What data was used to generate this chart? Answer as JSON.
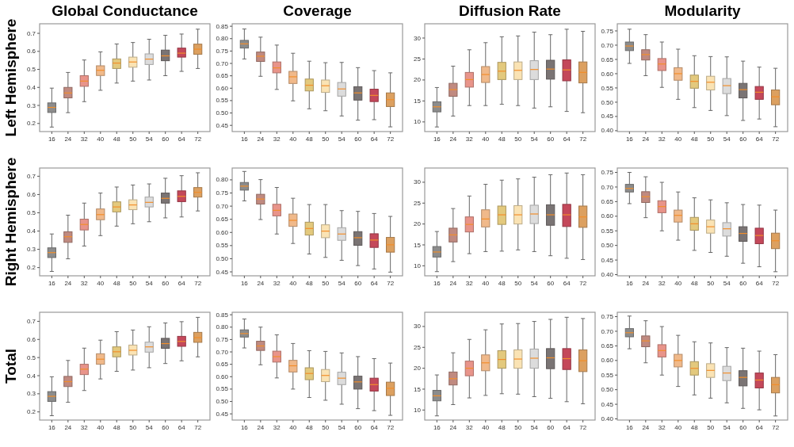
{
  "chart_data": [
    {
      "type": "box",
      "title": "Global Conductance",
      "ylabel": "Left Hemisphere",
      "categories": [
        "16",
        "24",
        "32",
        "40",
        "48",
        "50",
        "54",
        "60",
        "64",
        "72"
      ],
      "colors": [
        "#8c8c8c",
        "#c08a80",
        "#e8948a",
        "#f0b98a",
        "#e3c97d",
        "#fae3b4",
        "#dcdcdc",
        "#7a7474",
        "#c4485a",
        "#dca060"
      ],
      "ylim": [
        0.155,
        0.753
      ],
      "yticks": [
        0.2,
        0.3,
        0.4,
        0.5,
        0.6,
        0.7
      ],
      "boxes": [
        {
          "low": 0.18,
          "q1": 0.261,
          "median": 0.289,
          "q3": 0.314,
          "high": 0.396
        },
        {
          "low": 0.26,
          "q1": 0.342,
          "median": 0.369,
          "q3": 0.4,
          "high": 0.483
        },
        {
          "low": 0.321,
          "q1": 0.406,
          "median": 0.435,
          "q3": 0.465,
          "high": 0.552
        },
        {
          "low": 0.384,
          "q1": 0.466,
          "median": 0.495,
          "q3": 0.52,
          "high": 0.597
        },
        {
          "low": 0.424,
          "q1": 0.505,
          "median": 0.535,
          "q3": 0.558,
          "high": 0.641
        },
        {
          "low": 0.435,
          "q1": 0.512,
          "median": 0.541,
          "q3": 0.568,
          "high": 0.649
        },
        {
          "low": 0.441,
          "q1": 0.527,
          "median": 0.557,
          "q3": 0.586,
          "high": 0.667
        },
        {
          "low": 0.465,
          "q1": 0.548,
          "median": 0.575,
          "q3": 0.607,
          "high": 0.689
        },
        {
          "low": 0.489,
          "q1": 0.568,
          "median": 0.59,
          "q3": 0.618,
          "high": 0.696
        },
        {
          "low": 0.505,
          "q1": 0.584,
          "median": 0.612,
          "q3": 0.64,
          "high": 0.723
        }
      ]
    },
    {
      "type": "box",
      "title": "Coverage",
      "categories": [
        "16",
        "24",
        "32",
        "40",
        "48",
        "50",
        "54",
        "60",
        "64",
        "72"
      ],
      "colors": [
        "#8c8c8c",
        "#c08a80",
        "#e8948a",
        "#f0b98a",
        "#e3c97d",
        "#fae3b4",
        "#dcdcdc",
        "#7a7474",
        "#c4485a",
        "#dca060"
      ],
      "ylim": [
        0.425,
        0.86
      ],
      "yticks": [
        0.45,
        {
          "value": 0.5,
          "label": "0.50"
        },
        0.55,
        {
          "value": 0.6,
          "label": "0.60"
        },
        0.65,
        {
          "value": 0.7,
          "label": "0.70"
        },
        0.75,
        {
          "value": 0.8,
          "label": "0.80"
        },
        0.85
      ],
      "boxes": [
        {
          "low": 0.718,
          "q1": 0.762,
          "median": 0.779,
          "q3": 0.793,
          "high": 0.839
        },
        {
          "low": 0.648,
          "q1": 0.708,
          "median": 0.729,
          "q3": 0.746,
          "high": 0.806
        },
        {
          "low": 0.595,
          "q1": 0.662,
          "median": 0.682,
          "q3": 0.706,
          "high": 0.774
        },
        {
          "low": 0.549,
          "q1": 0.619,
          "median": 0.646,
          "q3": 0.668,
          "high": 0.741
        },
        {
          "low": 0.517,
          "q1": 0.589,
          "median": 0.612,
          "q3": 0.637,
          "high": 0.709
        },
        {
          "low": 0.509,
          "q1": 0.583,
          "median": 0.61,
          "q3": 0.633,
          "high": 0.703
        },
        {
          "low": 0.488,
          "q1": 0.568,
          "median": 0.597,
          "q3": 0.623,
          "high": 0.704
        },
        {
          "low": 0.471,
          "q1": 0.552,
          "median": 0.581,
          "q3": 0.606,
          "high": 0.683
        },
        {
          "low": 0.473,
          "q1": 0.546,
          "median": 0.571,
          "q3": 0.596,
          "high": 0.671
        },
        {
          "low": 0.444,
          "q1": 0.526,
          "median": 0.554,
          "q3": 0.581,
          "high": 0.662
        }
      ]
    },
    {
      "type": "box",
      "title": "Diffusion Rate",
      "categories": [
        "16",
        "24",
        "32",
        "40",
        "48",
        "50",
        "54",
        "60",
        "64",
        "72"
      ],
      "colors": [
        "#8c8c8c",
        "#c08a80",
        "#e8948a",
        "#f0b98a",
        "#e3c97d",
        "#fae3b4",
        "#dcdcdc",
        "#7a7474",
        "#c4485a",
        "#dca060"
      ],
      "ylim": [
        7.7,
        33.4
      ],
      "yticks": [
        10,
        15,
        20,
        25,
        30
      ],
      "boxes": [
        {
          "low": 8.8,
          "q1": 12.4,
          "median": 13.6,
          "q3": 14.8,
          "high": 18.2
        },
        {
          "low": 11.4,
          "q1": 16.1,
          "median": 17.7,
          "q3": 19.2,
          "high": 23.3
        },
        {
          "low": 13.9,
          "q1": 18.3,
          "median": 20.1,
          "q3": 21.8,
          "high": 27.2
        },
        {
          "low": 13.9,
          "q1": 19.4,
          "median": 21.3,
          "q3": 23.2,
          "high": 28.9
        },
        {
          "low": 14.2,
          "q1": 20.1,
          "median": 22.1,
          "q3": 24.2,
          "high": 30.3
        },
        {
          "low": 13.9,
          "q1": 20.1,
          "median": 22.3,
          "q3": 24.3,
          "high": 30.5
        },
        {
          "low": 13.3,
          "q1": 20.1,
          "median": 22.5,
          "q3": 24.6,
          "high": 31.4
        },
        {
          "low": 13.6,
          "q1": 20.2,
          "median": 22.6,
          "q3": 24.7,
          "high": 30.8
        },
        {
          "low": 12.5,
          "q1": 19.8,
          "median": 22.4,
          "q3": 24.8,
          "high": 32.1
        },
        {
          "low": 12.2,
          "q1": 19.3,
          "median": 21.8,
          "q3": 24.3,
          "high": 31.6
        }
      ]
    },
    {
      "type": "box",
      "title": "Modularity",
      "categories": [
        "16",
        "24",
        "32",
        "40",
        "48",
        "50",
        "54",
        "60",
        "64",
        "72"
      ],
      "colors": [
        "#8c8c8c",
        "#c08a80",
        "#e8948a",
        "#f0b98a",
        "#e3c97d",
        "#fae3b4",
        "#dcdcdc",
        "#7a7474",
        "#c4485a",
        "#dca060"
      ],
      "ylim": [
        0.397,
        0.775
      ],
      "yticks": [
        {
          "value": 0.4,
          "label": "0.40"
        },
        0.45,
        {
          "value": 0.5,
          "label": "0.50"
        },
        0.55,
        {
          "value": 0.6,
          "label": "0.60"
        },
        0.65,
        {
          "value": 0.7,
          "label": "0.70"
        },
        0.75
      ],
      "boxes": [
        {
          "low": 0.636,
          "q1": 0.681,
          "median": 0.697,
          "q3": 0.711,
          "high": 0.756
        },
        {
          "low": 0.593,
          "q1": 0.648,
          "median": 0.667,
          "q3": 0.684,
          "high": 0.737
        },
        {
          "low": 0.552,
          "q1": 0.611,
          "median": 0.634,
          "q3": 0.653,
          "high": 0.711
        },
        {
          "low": 0.51,
          "q1": 0.577,
          "median": 0.6,
          "q3": 0.621,
          "high": 0.686
        },
        {
          "low": 0.481,
          "q1": 0.549,
          "median": 0.573,
          "q3": 0.595,
          "high": 0.663
        },
        {
          "low": 0.471,
          "q1": 0.543,
          "median": 0.57,
          "q3": 0.591,
          "high": 0.66
        },
        {
          "low": 0.453,
          "q1": 0.53,
          "median": 0.558,
          "q3": 0.583,
          "high": 0.659
        },
        {
          "low": 0.436,
          "q1": 0.515,
          "median": 0.544,
          "q3": 0.566,
          "high": 0.644
        },
        {
          "low": 0.441,
          "q1": 0.51,
          "median": 0.535,
          "q3": 0.555,
          "high": 0.623
        },
        {
          "low": 0.414,
          "q1": 0.491,
          "median": 0.519,
          "q3": 0.543,
          "high": 0.619
        }
      ]
    },
    {
      "type": "box",
      "ylabel": "Right Hemisphere",
      "categories": [
        "16",
        "24",
        "32",
        "40",
        "48",
        "50",
        "54",
        "60",
        "64",
        "72"
      ],
      "colors": [
        "#8c8c8c",
        "#c08a80",
        "#e8948a",
        "#f0b98a",
        "#e3c97d",
        "#fae3b4",
        "#dcdcdc",
        "#7a7474",
        "#c4485a",
        "#dca060"
      ],
      "ylim": [
        0.155,
        0.745
      ],
      "yticks": [
        0.2,
        0.3,
        0.4,
        0.5,
        0.6,
        0.7
      ],
      "boxes": [
        {
          "low": 0.179,
          "q1": 0.255,
          "median": 0.282,
          "q3": 0.308,
          "high": 0.384
        },
        {
          "low": 0.248,
          "q1": 0.338,
          "median": 0.369,
          "q3": 0.396,
          "high": 0.487
        },
        {
          "low": 0.318,
          "q1": 0.406,
          "median": 0.436,
          "q3": 0.465,
          "high": 0.553
        },
        {
          "low": 0.375,
          "q1": 0.462,
          "median": 0.49,
          "q3": 0.521,
          "high": 0.608
        },
        {
          "low": 0.427,
          "q1": 0.505,
          "median": 0.532,
          "q3": 0.56,
          "high": 0.641
        },
        {
          "low": 0.44,
          "q1": 0.517,
          "median": 0.543,
          "q3": 0.571,
          "high": 0.652
        },
        {
          "low": 0.451,
          "q1": 0.532,
          "median": 0.557,
          "q3": 0.586,
          "high": 0.658
        },
        {
          "low": 0.472,
          "q1": 0.553,
          "median": 0.579,
          "q3": 0.608,
          "high": 0.689
        },
        {
          "low": 0.477,
          "q1": 0.561,
          "median": 0.59,
          "q3": 0.62,
          "high": 0.703
        },
        {
          "low": 0.51,
          "q1": 0.586,
          "median": 0.612,
          "q3": 0.638,
          "high": 0.719
        }
      ]
    },
    {
      "type": "box",
      "categories": [
        "16",
        "24",
        "32",
        "40",
        "48",
        "50",
        "54",
        "60",
        "64",
        "72"
      ],
      "colors": [
        "#8c8c8c",
        "#c08a80",
        "#e8948a",
        "#f0b98a",
        "#e3c97d",
        "#fae3b4",
        "#dcdcdc",
        "#7a7474",
        "#c4485a",
        "#dca060"
      ],
      "ylim": [
        0.435,
        0.845
      ],
      "yticks": [
        0.45,
        {
          "value": 0.5,
          "label": "0.50"
        },
        0.55,
        {
          "value": 0.6,
          "label": "0.60"
        },
        0.65,
        {
          "value": 0.7,
          "label": "0.70"
        },
        0.75,
        {
          "value": 0.8,
          "label": "0.80"
        }
      ],
      "boxes": [
        {
          "low": 0.72,
          "q1": 0.761,
          "median": 0.776,
          "q3": 0.79,
          "high": 0.832
        },
        {
          "low": 0.649,
          "q1": 0.708,
          "median": 0.727,
          "q3": 0.745,
          "high": 0.801
        },
        {
          "low": 0.594,
          "q1": 0.663,
          "median": 0.684,
          "q3": 0.707,
          "high": 0.771
        },
        {
          "low": 0.558,
          "q1": 0.623,
          "median": 0.646,
          "q3": 0.67,
          "high": 0.73
        },
        {
          "low": 0.518,
          "q1": 0.59,
          "median": 0.615,
          "q3": 0.639,
          "high": 0.706
        },
        {
          "low": 0.505,
          "q1": 0.58,
          "median": 0.605,
          "q3": 0.629,
          "high": 0.706
        },
        {
          "low": 0.494,
          "q1": 0.57,
          "median": 0.594,
          "q3": 0.618,
          "high": 0.683
        },
        {
          "low": 0.474,
          "q1": 0.551,
          "median": 0.58,
          "q3": 0.603,
          "high": 0.68
        },
        {
          "low": 0.461,
          "q1": 0.543,
          "median": 0.571,
          "q3": 0.595,
          "high": 0.672
        },
        {
          "low": 0.449,
          "q1": 0.525,
          "median": 0.553,
          "q3": 0.581,
          "high": 0.661
        }
      ]
    },
    {
      "type": "box",
      "categories": [
        "16",
        "24",
        "32",
        "40",
        "48",
        "50",
        "54",
        "60",
        "64",
        "72"
      ],
      "colors": [
        "#8c8c8c",
        "#c08a80",
        "#e8948a",
        "#f0b98a",
        "#e3c97d",
        "#fae3b4",
        "#dcdcdc",
        "#7a7474",
        "#c4485a",
        "#dca060"
      ],
      "ylim": [
        7.6,
        33.4
      ],
      "yticks": [
        10,
        15,
        20,
        25,
        30
      ],
      "boxes": [
        {
          "low": 8.6,
          "q1": 12.1,
          "median": 13.3,
          "q3": 14.6,
          "high": 18.2
        },
        {
          "low": 11.0,
          "q1": 15.7,
          "median": 17.4,
          "q3": 19.0,
          "high": 23.7
        },
        {
          "low": 12.9,
          "q1": 18.1,
          "median": 19.9,
          "q3": 21.7,
          "high": 26.7
        },
        {
          "low": 13.4,
          "q1": 19.3,
          "median": 21.2,
          "q3": 23.4,
          "high": 29.5
        },
        {
          "low": 13.5,
          "q1": 19.9,
          "median": 22.2,
          "q3": 24.3,
          "high": 30.5
        },
        {
          "low": 13.8,
          "q1": 20.0,
          "median": 22.2,
          "q3": 24.4,
          "high": 30.8
        },
        {
          "low": 13.4,
          "q1": 20.1,
          "median": 22.4,
          "q3": 24.5,
          "high": 31.2
        },
        {
          "low": 12.4,
          "q1": 19.7,
          "median": 22.2,
          "q3": 24.6,
          "high": 31.8
        },
        {
          "low": 11.8,
          "q1": 19.4,
          "median": 22.2,
          "q3": 24.7,
          "high": 32.2
        },
        {
          "low": 11.5,
          "q1": 19.2,
          "median": 21.7,
          "q3": 24.3,
          "high": 31.8
        }
      ]
    },
    {
      "type": "box",
      "categories": [
        "16",
        "24",
        "32",
        "40",
        "48",
        "50",
        "54",
        "60",
        "64",
        "72"
      ],
      "colors": [
        "#8c8c8c",
        "#c08a80",
        "#e8948a",
        "#f0b98a",
        "#e3c97d",
        "#fae3b4",
        "#dcdcdc",
        "#7a7474",
        "#c4485a",
        "#dca060"
      ],
      "ylim": [
        0.396,
        0.765
      ],
      "yticks": [
        {
          "value": 0.4,
          "label": "0.40"
        },
        0.45,
        {
          "value": 0.5,
          "label": "0.50"
        },
        0.55,
        {
          "value": 0.6,
          "label": "0.60"
        },
        0.65,
        {
          "value": 0.7,
          "label": "0.70"
        },
        0.75
      ],
      "boxes": [
        {
          "low": 0.643,
          "q1": 0.683,
          "median": 0.695,
          "q3": 0.709,
          "high": 0.75
        },
        {
          "low": 0.595,
          "q1": 0.647,
          "median": 0.667,
          "q3": 0.684,
          "high": 0.735
        },
        {
          "low": 0.55,
          "q1": 0.612,
          "median": 0.633,
          "q3": 0.653,
          "high": 0.716
        },
        {
          "low": 0.518,
          "q1": 0.58,
          "median": 0.603,
          "q3": 0.621,
          "high": 0.683
        },
        {
          "low": 0.483,
          "q1": 0.552,
          "median": 0.574,
          "q3": 0.596,
          "high": 0.663
        },
        {
          "low": 0.476,
          "q1": 0.542,
          "median": 0.564,
          "q3": 0.587,
          "high": 0.656
        },
        {
          "low": 0.463,
          "q1": 0.532,
          "median": 0.557,
          "q3": 0.578,
          "high": 0.646
        },
        {
          "low": 0.439,
          "q1": 0.514,
          "median": 0.541,
          "q3": 0.564,
          "high": 0.64
        },
        {
          "low": 0.427,
          "q1": 0.506,
          "median": 0.534,
          "q3": 0.559,
          "high": 0.638
        },
        {
          "low": 0.41,
          "q1": 0.489,
          "median": 0.516,
          "q3": 0.542,
          "high": 0.621
        }
      ]
    },
    {
      "type": "box",
      "ylabel": "Total",
      "categories": [
        "16",
        "24",
        "32",
        "40",
        "48",
        "50",
        "54",
        "60",
        "64",
        "72"
      ],
      "colors": [
        "#8c8c8c",
        "#c08a80",
        "#e8948a",
        "#f0b98a",
        "#e3c97d",
        "#fae3b4",
        "#dcdcdc",
        "#7a7474",
        "#c4485a",
        "#dca060"
      ],
      "ylim": [
        0.155,
        0.75
      ],
      "yticks": [
        0.2,
        0.3,
        0.4,
        0.5,
        0.6,
        0.7
      ],
      "boxes": [
        {
          "low": 0.179,
          "q1": 0.258,
          "median": 0.286,
          "q3": 0.312,
          "high": 0.394
        },
        {
          "low": 0.253,
          "q1": 0.34,
          "median": 0.367,
          "q3": 0.396,
          "high": 0.484
        },
        {
          "low": 0.318,
          "q1": 0.406,
          "median": 0.436,
          "q3": 0.463,
          "high": 0.552
        },
        {
          "low": 0.382,
          "q1": 0.463,
          "median": 0.491,
          "q3": 0.521,
          "high": 0.596
        },
        {
          "low": 0.424,
          "q1": 0.504,
          "median": 0.532,
          "q3": 0.559,
          "high": 0.643
        },
        {
          "low": 0.431,
          "q1": 0.514,
          "median": 0.54,
          "q3": 0.569,
          "high": 0.652
        },
        {
          "low": 0.444,
          "q1": 0.53,
          "median": 0.559,
          "q3": 0.585,
          "high": 0.67
        },
        {
          "low": 0.467,
          "q1": 0.551,
          "median": 0.577,
          "q3": 0.606,
          "high": 0.691
        },
        {
          "low": 0.482,
          "q1": 0.562,
          "median": 0.589,
          "q3": 0.617,
          "high": 0.698
        },
        {
          "low": 0.504,
          "q1": 0.584,
          "median": 0.61,
          "q3": 0.639,
          "high": 0.722
        }
      ]
    },
    {
      "type": "box",
      "categories": [
        "16",
        "24",
        "32",
        "40",
        "48",
        "50",
        "54",
        "60",
        "64",
        "72"
      ],
      "colors": [
        "#8c8c8c",
        "#c08a80",
        "#e8948a",
        "#f0b98a",
        "#e3c97d",
        "#fae3b4",
        "#dcdcdc",
        "#7a7474",
        "#c4485a",
        "#dca060"
      ],
      "ylim": [
        0.425,
        0.86
      ],
      "yticks": [
        0.45,
        {
          "value": 0.5,
          "label": "0.50"
        },
        0.55,
        {
          "value": 0.6,
          "label": "0.60"
        },
        0.65,
        {
          "value": 0.7,
          "label": "0.70"
        },
        0.75,
        {
          "value": 0.8,
          "label": "0.80"
        },
        0.85
      ],
      "boxes": [
        {
          "low": 0.716,
          "q1": 0.76,
          "median": 0.774,
          "q3": 0.789,
          "high": 0.833
        },
        {
          "low": 0.648,
          "q1": 0.706,
          "median": 0.724,
          "q3": 0.743,
          "high": 0.8
        },
        {
          "low": 0.595,
          "q1": 0.659,
          "median": 0.681,
          "q3": 0.703,
          "high": 0.769
        },
        {
          "low": 0.55,
          "q1": 0.619,
          "median": 0.644,
          "q3": 0.666,
          "high": 0.734
        },
        {
          "low": 0.516,
          "q1": 0.588,
          "median": 0.613,
          "q3": 0.636,
          "high": 0.705
        },
        {
          "low": 0.505,
          "q1": 0.58,
          "median": 0.605,
          "q3": 0.629,
          "high": 0.702
        },
        {
          "low": 0.489,
          "q1": 0.568,
          "median": 0.594,
          "q3": 0.618,
          "high": 0.696
        },
        {
          "low": 0.471,
          "q1": 0.55,
          "median": 0.579,
          "q3": 0.602,
          "high": 0.681
        },
        {
          "low": 0.463,
          "q1": 0.542,
          "median": 0.568,
          "q3": 0.594,
          "high": 0.673
        },
        {
          "low": 0.444,
          "q1": 0.524,
          "median": 0.553,
          "q3": 0.578,
          "high": 0.655
        }
      ]
    },
    {
      "type": "box",
      "categories": [
        "16",
        "24",
        "32",
        "40",
        "48",
        "50",
        "54",
        "60",
        "64",
        "72"
      ],
      "colors": [
        "#8c8c8c",
        "#c08a80",
        "#e8948a",
        "#f0b98a",
        "#e3c97d",
        "#fae3b4",
        "#dcdcdc",
        "#7a7474",
        "#c4485a",
        "#dca060"
      ],
      "ylim": [
        7.6,
        33.4
      ],
      "yticks": [
        10,
        15,
        20,
        25,
        30
      ],
      "boxes": [
        {
          "low": 8.6,
          "q1": 12.2,
          "median": 13.4,
          "q3": 14.7,
          "high": 18.4
        },
        {
          "low": 11.3,
          "q1": 16.0,
          "median": 17.5,
          "q3": 19.1,
          "high": 23.7
        },
        {
          "low": 12.9,
          "q1": 18.2,
          "median": 20.0,
          "q3": 21.7,
          "high": 26.9
        },
        {
          "low": 13.5,
          "q1": 19.4,
          "median": 21.3,
          "q3": 23.2,
          "high": 29.2
        },
        {
          "low": 13.9,
          "q1": 20.0,
          "median": 22.1,
          "q3": 24.2,
          "high": 30.6
        },
        {
          "low": 13.8,
          "q1": 20.0,
          "median": 22.2,
          "q3": 24.4,
          "high": 30.7
        },
        {
          "low": 13.2,
          "q1": 20.0,
          "median": 22.4,
          "q3": 24.6,
          "high": 31.2
        },
        {
          "low": 12.8,
          "q1": 19.9,
          "median": 22.5,
          "q3": 24.7,
          "high": 31.7
        },
        {
          "low": 12.0,
          "q1": 19.7,
          "median": 22.3,
          "q3": 24.7,
          "high": 32.2
        },
        {
          "low": 11.5,
          "q1": 19.2,
          "median": 21.8,
          "q3": 24.4,
          "high": 31.9
        }
      ]
    },
    {
      "type": "box",
      "categories": [
        "16",
        "24",
        "32",
        "40",
        "48",
        "50",
        "54",
        "60",
        "64",
        "72"
      ],
      "colors": [
        "#8c8c8c",
        "#c08a80",
        "#e8948a",
        "#f0b98a",
        "#e3c97d",
        "#fae3b4",
        "#dcdcdc",
        "#7a7474",
        "#c4485a",
        "#dca060"
      ],
      "ylim": [
        0.396,
        0.765
      ],
      "yticks": [
        {
          "value": 0.4,
          "label": "0.40"
        },
        0.45,
        {
          "value": 0.5,
          "label": "0.50"
        },
        0.55,
        {
          "value": 0.6,
          "label": "0.60"
        },
        0.65,
        {
          "value": 0.7,
          "label": "0.70"
        },
        0.75
      ],
      "boxes": [
        {
          "low": 0.64,
          "q1": 0.681,
          "median": 0.695,
          "q3": 0.709,
          "high": 0.752
        },
        {
          "low": 0.592,
          "q1": 0.647,
          "median": 0.667,
          "q3": 0.684,
          "high": 0.736
        },
        {
          "low": 0.55,
          "q1": 0.612,
          "median": 0.634,
          "q3": 0.654,
          "high": 0.716
        },
        {
          "low": 0.511,
          "q1": 0.578,
          "median": 0.6,
          "q3": 0.621,
          "high": 0.686
        },
        {
          "low": 0.482,
          "q1": 0.55,
          "median": 0.573,
          "q3": 0.596,
          "high": 0.664
        },
        {
          "low": 0.471,
          "q1": 0.542,
          "median": 0.566,
          "q3": 0.589,
          "high": 0.66
        },
        {
          "low": 0.455,
          "q1": 0.531,
          "median": 0.557,
          "q3": 0.58,
          "high": 0.644
        },
        {
          "low": 0.436,
          "q1": 0.513,
          "median": 0.542,
          "q3": 0.565,
          "high": 0.642
        },
        {
          "low": 0.431,
          "q1": 0.506,
          "median": 0.533,
          "q3": 0.557,
          "high": 0.632
        },
        {
          "low": 0.41,
          "q1": 0.489,
          "median": 0.517,
          "q3": 0.542,
          "high": 0.62
        }
      ]
    }
  ]
}
